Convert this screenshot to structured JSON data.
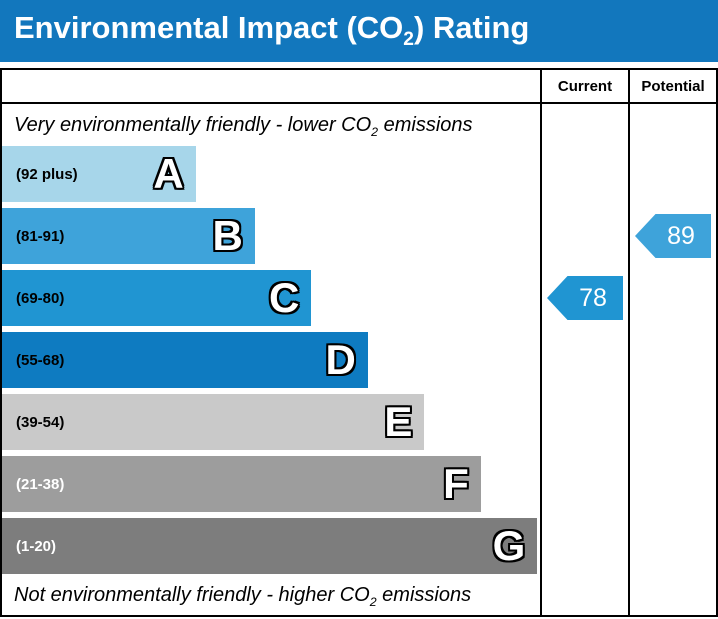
{
  "title": {
    "pre": "Environmental Impact (CO",
    "sub": "2",
    "post": ") Rating"
  },
  "columns": {
    "current": "Current",
    "potential": "Potential"
  },
  "notes": {
    "top": {
      "pre": "Very environmentally friendly - lower CO",
      "sub": "2",
      "post": " emissions"
    },
    "bottom": {
      "pre": "Not environmentally friendly - higher CO",
      "sub": "2",
      "post": " emissions"
    }
  },
  "bands": [
    {
      "letter": "A",
      "range": "(92 plus)",
      "color": "#a7d6ea",
      "width_pct": 36,
      "text_color": "#000000"
    },
    {
      "letter": "B",
      "range": "(81-91)",
      "color": "#3ea3da",
      "width_pct": 47,
      "text_color": "#000000"
    },
    {
      "letter": "C",
      "range": "(69-80)",
      "color": "#2095d2",
      "width_pct": 57.5,
      "text_color": "#000000"
    },
    {
      "letter": "D",
      "range": "(55-68)",
      "color": "#0e7bc1",
      "width_pct": 68,
      "text_color": "#000000"
    },
    {
      "letter": "E",
      "range": "(39-54)",
      "color": "#c9c9c9",
      "width_pct": 78.5,
      "text_color": "#000000"
    },
    {
      "letter": "F",
      "range": "(21-38)",
      "color": "#9d9d9d",
      "width_pct": 89,
      "text_color": "#ffffff"
    },
    {
      "letter": "G",
      "range": "(1-20)",
      "color": "#7d7d7d",
      "width_pct": 99.5,
      "text_color": "#ffffff"
    }
  ],
  "current": {
    "value": "78",
    "color": "#2095d2",
    "band": "C"
  },
  "potential": {
    "value": "89",
    "color": "#3ea3da",
    "band": "B"
  },
  "theme": {
    "title_bg": "#1277bd",
    "border": "#000000"
  },
  "chart_data": {
    "type": "bar",
    "title": "Environmental Impact (CO2) Rating",
    "categories": [
      "A",
      "B",
      "C",
      "D",
      "E",
      "F",
      "G"
    ],
    "band_ranges": [
      "92 plus",
      "81-91",
      "69-80",
      "55-68",
      "39-54",
      "21-38",
      "1-20"
    ],
    "bar_lengths_pct": [
      36,
      47,
      57.5,
      68,
      78.5,
      89,
      99.5
    ],
    "series": [
      {
        "name": "Current",
        "value": 78,
        "band": "C"
      },
      {
        "name": "Potential",
        "value": 89,
        "band": "B"
      }
    ],
    "notes": [
      "Very environmentally friendly - lower CO2 emissions",
      "Not environmentally friendly - higher CO2 emissions"
    ],
    "legend_position": "none",
    "grid": false
  }
}
